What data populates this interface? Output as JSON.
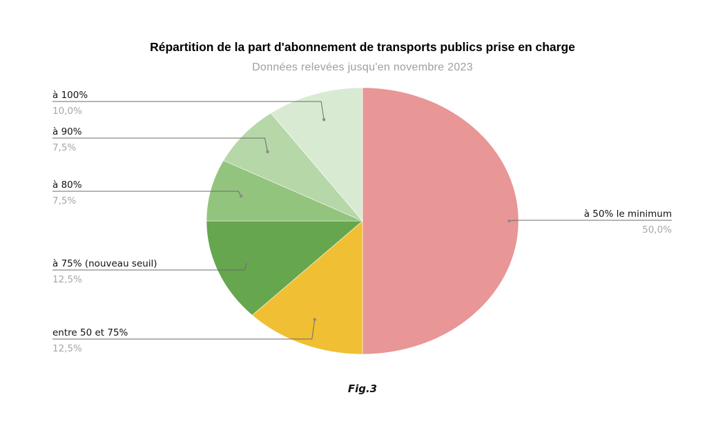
{
  "chart_data": {
    "type": "pie",
    "title": "Répartition de la part d'abonnement de transports publics prise en charge",
    "subtitle": "Données relevées jusqu'en novembre 2023",
    "slices": [
      {
        "label": "à 50% le minimum",
        "value": 50.0,
        "value_label": "50,0%",
        "color": "#e89696"
      },
      {
        "label": "entre 50 et 75%",
        "value": 12.5,
        "value_label": "12,5%",
        "color": "#f0bf33"
      },
      {
        "label": "à 75% (nouveau seuil)",
        "value": 12.5,
        "value_label": "12,5%",
        "color": "#66a64e"
      },
      {
        "label": "à 80%",
        "value": 7.5,
        "value_label": "7,5%",
        "color": "#93c47d"
      },
      {
        "label": "à 90%",
        "value": 7.5,
        "value_label": "7,5%",
        "color": "#b6d7a8"
      },
      {
        "label": "à 100%",
        "value": 10.0,
        "value_label": "10,0%",
        "color": "#d9ead3"
      }
    ],
    "start_angle": "top",
    "direction": "clockwise",
    "legend": "none"
  },
  "caption": "Fig.3"
}
